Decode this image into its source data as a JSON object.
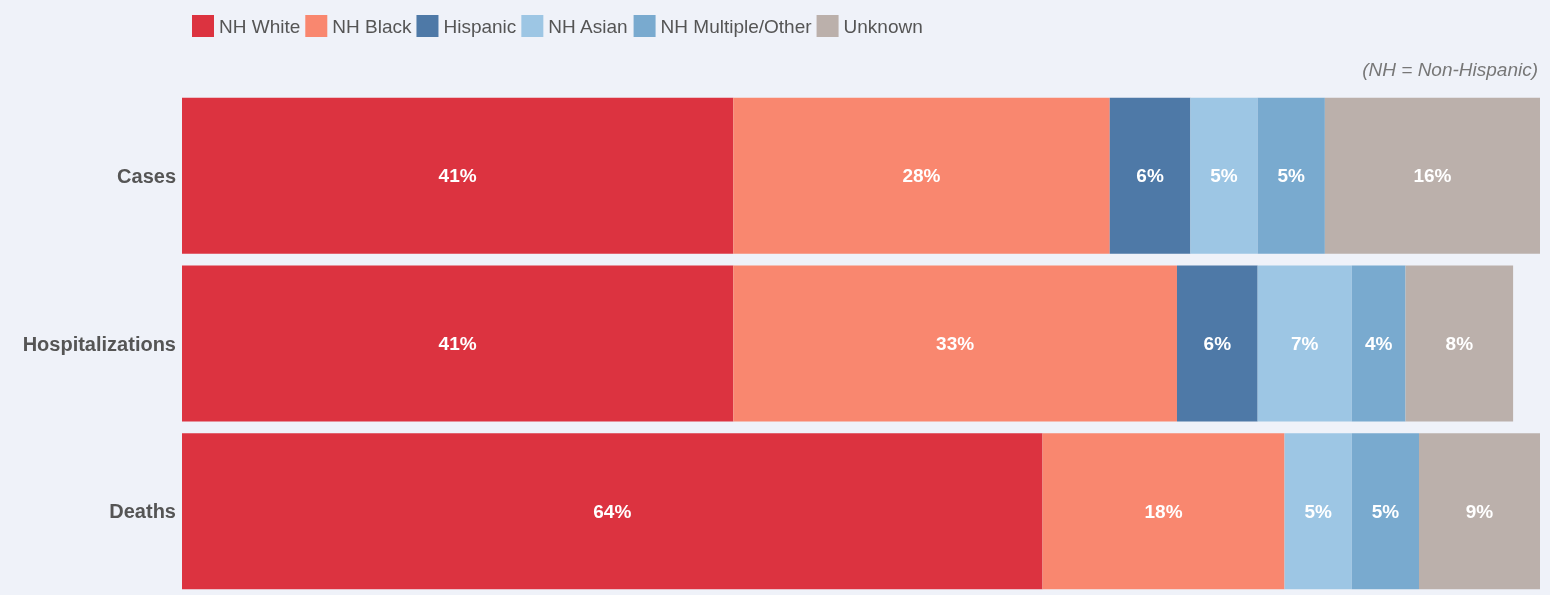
{
  "chart_data": {
    "type": "bar",
    "orientation": "horizontal",
    "stacked": true,
    "categories": [
      "Cases",
      "Hospitalizations",
      "Deaths"
    ],
    "xlim": [
      0,
      101
    ],
    "tick_labels": "y",
    "legend": "top",
    "annotations": [
      "(NH = Non-Hispanic)"
    ],
    "series": [
      {
        "name": "NH White",
        "color": "#dc3340",
        "values": [
          41,
          41,
          64
        ],
        "value_labels": [
          "41%",
          "41%",
          "64%"
        ]
      },
      {
        "name": "NH Black",
        "color": "#f9876f",
        "values": [
          28,
          33,
          18
        ],
        "value_labels": [
          "28%",
          "33%",
          "18%"
        ]
      },
      {
        "name": "Hispanic",
        "color": "#4e79a7",
        "values": [
          6,
          6,
          null
        ],
        "value_labels": [
          "6%",
          "6%",
          null
        ]
      },
      {
        "name": "NH Asian",
        "color": "#9dc6e4",
        "values": [
          5,
          7,
          5
        ],
        "value_labels": [
          "5%",
          "7%",
          "5%"
        ]
      },
      {
        "name": "NH Multiple/Other",
        "color": "#79aacf",
        "values": [
          5,
          4,
          5
        ],
        "value_labels": [
          "5%",
          "4%",
          "5%"
        ]
      },
      {
        "name": "Unknown",
        "color": "#bbb0ab",
        "values": [
          16,
          8,
          9
        ],
        "value_labels": [
          "16%",
          "8%",
          "9%"
        ]
      }
    ]
  }
}
